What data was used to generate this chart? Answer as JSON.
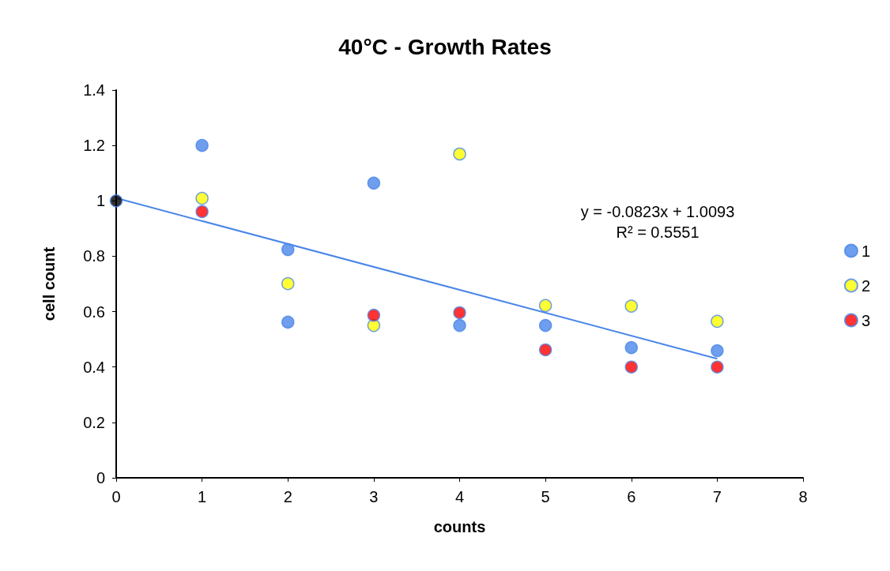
{
  "chart_data": {
    "type": "scatter",
    "title": "40°C - Growth Rates",
    "xlabel": "counts",
    "ylabel": "cell count",
    "xlim": [
      0,
      8
    ],
    "xticks": [
      0,
      1,
      2,
      3,
      4,
      5,
      6,
      7,
      8
    ],
    "ylim": [
      0,
      1.4
    ],
    "yticks": [
      0,
      0.2,
      0.4,
      0.6,
      0.8,
      1,
      1.2,
      1.4
    ],
    "grid": false,
    "legend": "right",
    "marker": "circle",
    "annotations": [
      "y = -0.0823x + 1.0093",
      "R² = 0.5551"
    ],
    "series": [
      {
        "name": "1",
        "color": "#4a86e8",
        "x": [
          1,
          2,
          2,
          3,
          4,
          5,
          6,
          7
        ],
        "values": [
          1.2,
          0.824,
          0.562,
          1.064,
          0.55,
          0.55,
          0.47,
          0.459
        ]
      },
      {
        "name": "2",
        "color": "#ffff00",
        "x": [
          1,
          2,
          3,
          4,
          5,
          6,
          7
        ],
        "values": [
          1.009,
          0.701,
          0.55,
          1.169,
          0.622,
          0.62,
          0.565
        ]
      },
      {
        "name": "3",
        "color": "#ff0000",
        "x": [
          1,
          3,
          4,
          5,
          6,
          7
        ],
        "values": [
          0.961,
          0.587,
          0.596,
          0.462,
          0.4,
          0.4
        ]
      },
      {
        "color": "#000000",
        "x": [
          0
        ],
        "values": [
          1
        ]
      },
      {
        "type": "line",
        "marker": "none",
        "color": "#4a86e8",
        "x": [
          0,
          7
        ],
        "values": [
          1.01,
          0.43
        ]
      }
    ]
  }
}
